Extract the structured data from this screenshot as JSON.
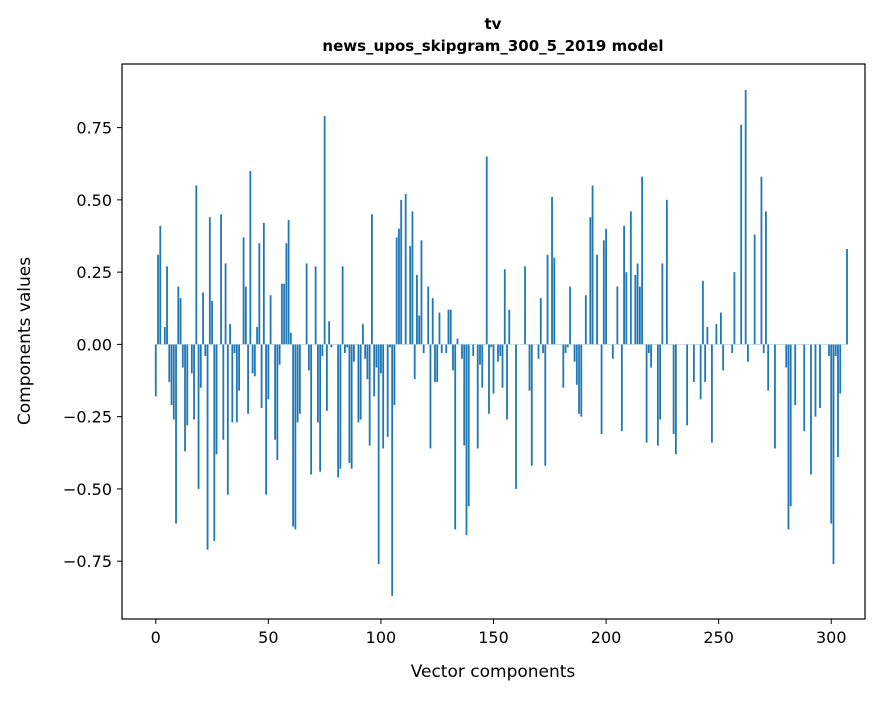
{
  "chart_data": {
    "type": "bar",
    "title": "tv",
    "subtitle": "news_upos_skipgram_300_5_2019 model",
    "xlabel": "Vector components",
    "ylabel": "Components values",
    "xlim": [
      -15,
      315
    ],
    "ylim": [
      -0.95,
      0.97
    ],
    "x_ticks": [
      0,
      50,
      100,
      150,
      200,
      250,
      300
    ],
    "y_ticks": [
      -0.75,
      -0.5,
      -0.25,
      0.0,
      0.25,
      0.5,
      0.75
    ],
    "y_tick_labels": [
      "−0.75",
      "−0.50",
      "−0.25",
      "0.00",
      "0.25",
      "0.50",
      "0.75"
    ],
    "bar_color": "#1f77b4",
    "values": [
      -0.18,
      0.31,
      0.41,
      0.0,
      0.06,
      0.27,
      -0.13,
      -0.21,
      -0.26,
      -0.62,
      0.2,
      0.16,
      -0.08,
      -0.37,
      -0.28,
      0.0,
      -0.1,
      -0.26,
      0.55,
      -0.5,
      -0.15,
      0.18,
      -0.04,
      -0.71,
      0.44,
      0.15,
      -0.68,
      -0.38,
      0.0,
      0.45,
      -0.33,
      0.28,
      -0.52,
      0.07,
      -0.27,
      -0.03,
      -0.27,
      -0.16,
      0.0,
      0.37,
      0.2,
      -0.24,
      0.6,
      -0.1,
      -0.11,
      0.06,
      0.35,
      -0.22,
      0.42,
      -0.52,
      -0.19,
      0.17,
      0.0,
      -0.33,
      -0.4,
      -0.07,
      0.21,
      0.21,
      0.35,
      0.43,
      0.04,
      -0.63,
      -0.64,
      -0.27,
      -0.24,
      0.0,
      0.0,
      0.28,
      -0.09,
      -0.45,
      0.0,
      0.27,
      -0.27,
      -0.44,
      -0.04,
      0.79,
      -0.23,
      0.08,
      -0.01,
      0.0,
      0.0,
      -0.46,
      -0.43,
      0.27,
      -0.03,
      -0.01,
      -0.41,
      -0.43,
      -0.06,
      0.0,
      -0.27,
      -0.26,
      0.07,
      -0.05,
      -0.12,
      -0.35,
      0.45,
      -0.18,
      -0.08,
      -0.76,
      -0.1,
      -0.36,
      0.0,
      -0.32,
      -0.01,
      -0.87,
      -0.21,
      0.37,
      0.4,
      0.5,
      0.0,
      0.52,
      0.0,
      0.34,
      0.46,
      -0.12,
      0.24,
      0.1,
      0.36,
      -0.03,
      0.0,
      0.2,
      -0.36,
      0.16,
      -0.13,
      -0.13,
      0.11,
      -0.03,
      0.0,
      -0.03,
      0.12,
      0.12,
      -0.09,
      -0.64,
      0.02,
      0.0,
      -0.05,
      -0.35,
      -0.66,
      -0.56,
      0.0,
      -0.04,
      0.0,
      -0.36,
      -0.07,
      -0.15,
      0.0,
      0.65,
      -0.24,
      -0.01,
      -0.17,
      0.0,
      -0.06,
      -0.04,
      -0.15,
      0.26,
      -0.26,
      0.12,
      0.0,
      0.0,
      -0.5,
      0.0,
      0.0,
      0.0,
      0.27,
      0.0,
      -0.16,
      -0.42,
      0.0,
      0.0,
      -0.05,
      0.16,
      -0.03,
      -0.42,
      0.31,
      0.0,
      0.51,
      0.3,
      0.0,
      0.0,
      0.0,
      -0.15,
      -0.03,
      -0.01,
      0.2,
      0.0,
      -0.06,
      -0.14,
      -0.24,
      -0.25,
      0.0,
      0.17,
      0.0,
      0.44,
      0.55,
      0.0,
      0.31,
      0.0,
      -0.31,
      0.36,
      0.4,
      0.0,
      0.0,
      -0.05,
      0.0,
      0.2,
      0.0,
      -0.3,
      0.41,
      0.25,
      0.0,
      0.46,
      0.0,
      0.24,
      0.28,
      0.2,
      0.58,
      0.0,
      -0.34,
      -0.03,
      -0.08,
      0.0,
      0.0,
      -0.35,
      -0.26,
      0.28,
      0.0,
      0.5,
      0.0,
      0.0,
      -0.31,
      -0.38,
      0.0,
      0.0,
      0.0,
      0.0,
      -0.28,
      0.0,
      0.0,
      -0.13,
      0.0,
      0.0,
      -0.19,
      0.22,
      -0.13,
      0.06,
      0.0,
      -0.34,
      0.0,
      0.07,
      0.0,
      0.11,
      -0.09,
      0.0,
      0.0,
      0.0,
      -0.03,
      0.25,
      0.0,
      0.0,
      0.76,
      0.0,
      0.88,
      -0.06,
      0.0,
      0.0,
      0.38,
      0.0,
      0.0,
      0.58,
      -0.03,
      0.46,
      -0.16,
      0.0,
      0.0,
      -0.36,
      0.0,
      0.0,
      0.0,
      0.0,
      -0.08,
      -0.64,
      -0.56,
      0.0,
      -0.21,
      0.0,
      0.0,
      0.0,
      -0.3,
      0.0,
      0.0,
      -0.45,
      0.0,
      -0.25,
      0.0,
      -0.22,
      0.0,
      0.0,
      0.0,
      -0.04,
      -0.62,
      -0.76,
      -0.04,
      -0.39,
      -0.17,
      0.0,
      0.0,
      0.33
    ]
  }
}
